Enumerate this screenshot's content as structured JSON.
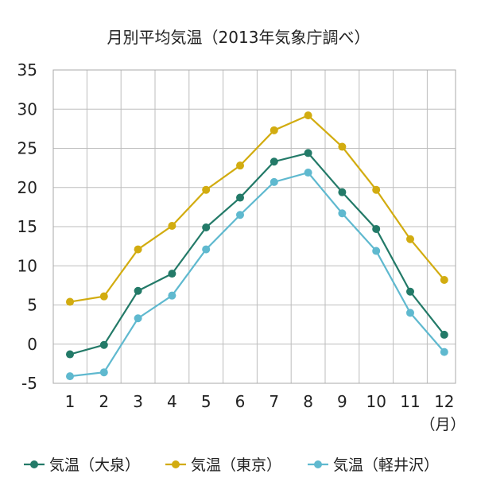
{
  "chart_data": {
    "type": "line",
    "title": "月別平均気温（2013年気象庁調べ）",
    "x_unit": "（月）",
    "categories": [
      "1",
      "2",
      "3",
      "4",
      "5",
      "6",
      "7",
      "8",
      "9",
      "10",
      "11",
      "12"
    ],
    "y_ticks": [
      "35",
      "30",
      "25",
      "20",
      "15",
      "10",
      "5",
      "0",
      "-5"
    ],
    "ylim": [
      -5,
      35
    ],
    "grid": true,
    "legend_position": "bottom",
    "series": [
      {
        "name": "気温（大泉）",
        "color": "#237a68",
        "values": [
          -1.3,
          -0.1,
          6.8,
          9.0,
          14.9,
          18.7,
          23.3,
          24.4,
          19.4,
          14.7,
          6.7,
          1.2
        ]
      },
      {
        "name": "気温（東京）",
        "color": "#d2ac10",
        "values": [
          5.4,
          6.1,
          12.1,
          15.1,
          19.7,
          22.8,
          27.3,
          29.2,
          25.2,
          19.7,
          13.4,
          8.2
        ]
      },
      {
        "name": "気温（軽井沢）",
        "color": "#5fb9cf",
        "values": [
          -4.1,
          -3.6,
          3.3,
          6.2,
          12.1,
          16.5,
          20.7,
          21.9,
          16.7,
          11.9,
          4.0,
          -1.0
        ]
      }
    ]
  }
}
